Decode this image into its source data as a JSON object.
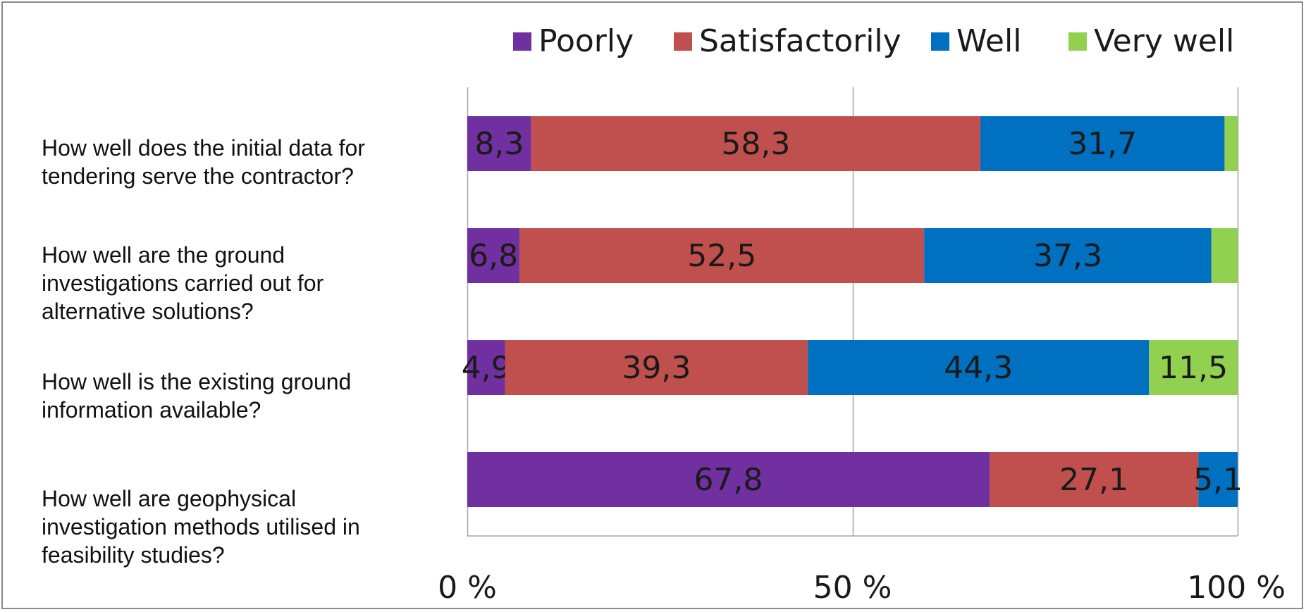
{
  "chart_data": {
    "type": "bar",
    "orientation": "horizontal",
    "stacked": "percent",
    "title": "",
    "categories": [
      "How well does the initial data for\ntendering serve the contractor?",
      "How well are the ground\ninvestigations carried out for\nalternative solutions?",
      "How well is the existing ground\ninformation available?",
      "How well are geophysical\ninvestigation methods utilised in\nfeasibility studies?"
    ],
    "series": [
      {
        "name": "Poorly",
        "color": "#7030A0",
        "values": [
          8.3,
          6.8,
          4.9,
          67.8
        ],
        "labels": [
          "8,3",
          "6,8",
          "4,9",
          "67,8"
        ]
      },
      {
        "name": "Satisfactorily",
        "color": "#C0504D",
        "values": [
          58.3,
          52.5,
          39.3,
          27.1
        ],
        "labels": [
          "58,3",
          "52,5",
          "39,3",
          "27,1"
        ]
      },
      {
        "name": "Well",
        "color": "#0070C0",
        "values": [
          31.7,
          37.3,
          44.3,
          5.1
        ],
        "labels": [
          "31,7",
          "37,3",
          "44,3",
          "5,1"
        ]
      },
      {
        "name": "Very well",
        "color": "#92D050",
        "values": [
          1.7,
          3.4,
          11.5,
          0
        ],
        "labels": [
          "",
          "",
          "11,5",
          ""
        ]
      }
    ],
    "x_ticks": [
      "0 %",
      "50 %",
      "100 %"
    ],
    "xlim": [
      0,
      100
    ],
    "grid": true,
    "legend_position": "top"
  }
}
